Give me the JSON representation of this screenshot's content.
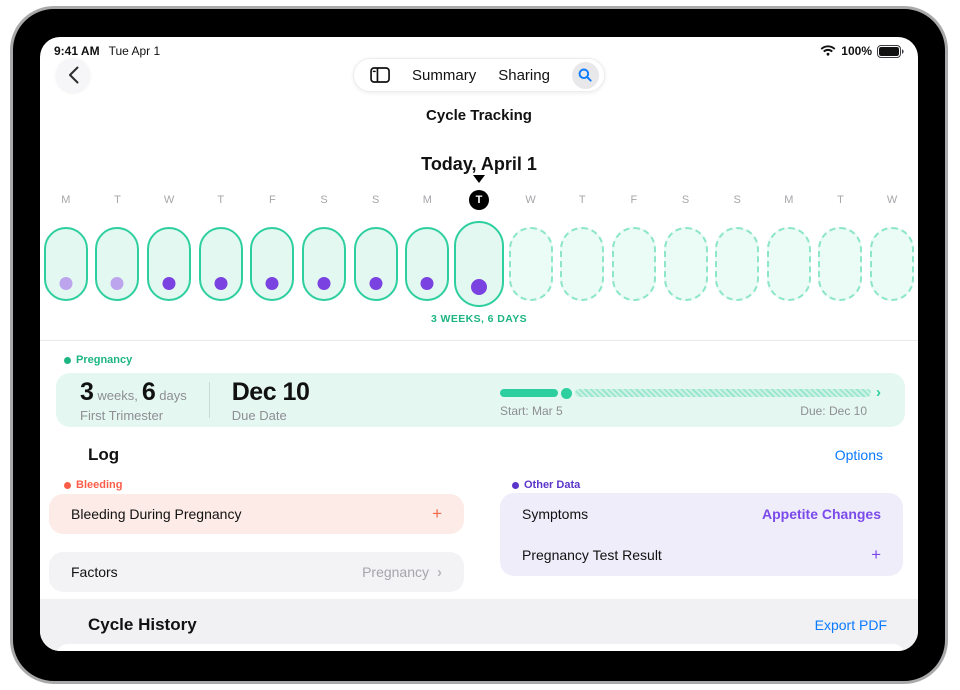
{
  "status_bar": {
    "time": "9:41 AM",
    "date": "Tue Apr 1",
    "battery": "100%",
    "icons": [
      "wifi-icon",
      "battery-icon"
    ]
  },
  "nav": {
    "back_icon": "chevron-left-icon",
    "sidebar_icon": "sidebar-toggle-icon",
    "tabs": [
      {
        "label": "Summary"
      },
      {
        "label": "Sharing"
      }
    ],
    "search_icon": "search-icon",
    "title": "Cycle Tracking"
  },
  "timeline": {
    "header": "Today, April 1",
    "today_letter": "T",
    "days": [
      {
        "letter": "M",
        "state": "past",
        "dot": "light"
      },
      {
        "letter": "T",
        "state": "past",
        "dot": "light"
      },
      {
        "letter": "W",
        "state": "past",
        "dot": "dark"
      },
      {
        "letter": "T",
        "state": "past",
        "dot": "dark"
      },
      {
        "letter": "F",
        "state": "past",
        "dot": "dark"
      },
      {
        "letter": "S",
        "state": "past",
        "dot": "dark"
      },
      {
        "letter": "S",
        "state": "past",
        "dot": "dark"
      },
      {
        "letter": "M",
        "state": "past",
        "dot": "dark"
      },
      {
        "letter": "T",
        "state": "today",
        "dot": "dark"
      },
      {
        "letter": "W",
        "state": "future",
        "dot": "none"
      },
      {
        "letter": "T",
        "state": "future",
        "dot": "none"
      },
      {
        "letter": "F",
        "state": "future",
        "dot": "none"
      },
      {
        "letter": "S",
        "state": "future",
        "dot": "none"
      },
      {
        "letter": "S",
        "state": "future",
        "dot": "none"
      },
      {
        "letter": "M",
        "state": "future",
        "dot": "none"
      },
      {
        "letter": "T",
        "state": "future",
        "dot": "none"
      },
      {
        "letter": "W",
        "state": "future",
        "dot": "none"
      }
    ],
    "duration_label": "3 WEEKS, 6 DAYS"
  },
  "pregnancy": {
    "section_label": "Pregnancy",
    "weeks_value": "3",
    "weeks_unit": "weeks,",
    "days_value": "6",
    "days_unit": "days",
    "trimester": "First Trimester",
    "due_value": "Dec 10",
    "due_label": "Due Date",
    "start_caption": "Start: Mar 5",
    "due_caption": "Due: Dec 10",
    "progress_chevron": "›"
  },
  "log": {
    "title": "Log",
    "options_label": "Options",
    "bleeding": {
      "section_label": "Bleeding",
      "item_label": "Bleeding During Pregnancy",
      "add_label": "+"
    },
    "factors": {
      "item_label": "Factors",
      "value": "Pregnancy",
      "chevron": "›"
    },
    "other_data": {
      "section_label": "Other Data",
      "rows": [
        {
          "label": "Symptoms",
          "value": "Appetite Changes"
        },
        {
          "label": "Pregnancy Test Result",
          "value": "+"
        }
      ]
    }
  },
  "cycle_history": {
    "title": "Cycle History",
    "export_label": "Export PDF"
  },
  "colors": {
    "teal": "#2ecf9f",
    "teal_text": "#1db583",
    "teal_dashed": "#8ce6c8",
    "mint_fill": "#e3f8f0",
    "mint_fill_light": "#ebfbf5",
    "mint_card": "#e4f7f0",
    "dot_light": "#bda5ee",
    "dot_dark": "#7a42e0",
    "coral": "#fb5d49",
    "purple": "#7b4aea",
    "link_blue": "#0a7aff"
  }
}
